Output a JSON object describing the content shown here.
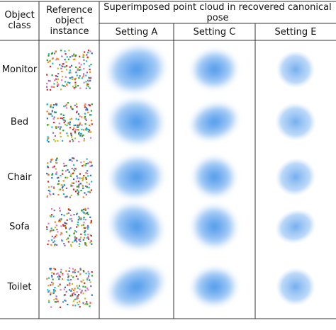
{
  "header": {
    "object_class": "Object class",
    "reference": "Reference object instance",
    "group": "Superimposed point cloud in recovered canonical pose",
    "settings": [
      "Setting A",
      "Setting C",
      "Setting E"
    ]
  },
  "rows": [
    "Monitor",
    "Bed",
    "Chair",
    "Sofa",
    "Toilet"
  ]
}
